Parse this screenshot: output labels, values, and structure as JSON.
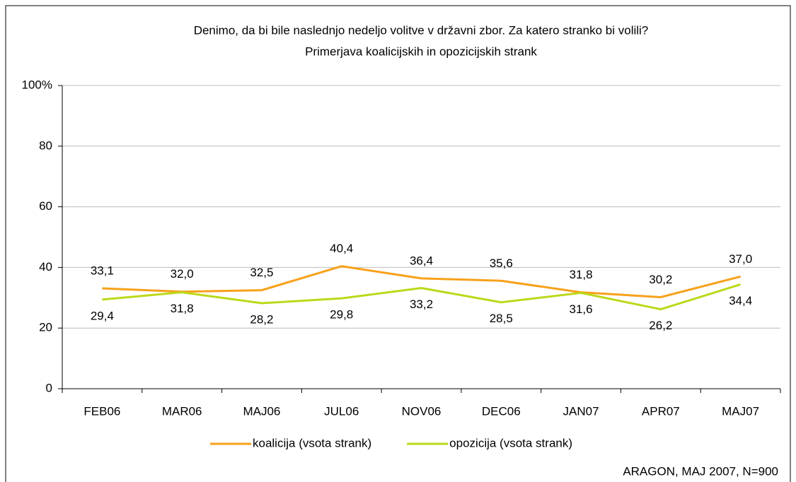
{
  "chart_data": {
    "type": "line",
    "title": "Denimo, da bi bile naslednjo nedeljo volitve v državni zbor. Za katero stranko bi volili?",
    "subtitle": "Primerjava koalicijskih in opozicijskih strank",
    "source": "ARAGON, MAJ 2007, N=900",
    "categories": [
      "FEB06",
      "MAR06",
      "MAJ06",
      "JUL06",
      "NOV06",
      "DEC06",
      "JAN07",
      "APR07",
      "MAJ07"
    ],
    "series": [
      {
        "name": "koalicija (vsota strank)",
        "color": "#f7a11a",
        "values": [
          33.1,
          32.0,
          32.5,
          40.4,
          36.4,
          35.6,
          31.8,
          30.2,
          37.0
        ],
        "value_labels": [
          "33,1",
          "32,0",
          "32,5",
          "40,4",
          "36,4",
          "35,6",
          "31,8",
          "30,2",
          "37,0"
        ]
      },
      {
        "name": "opozicija (vsota strank)",
        "color": "#bcd81a",
        "values": [
          29.4,
          31.8,
          28.2,
          29.8,
          33.2,
          28.5,
          31.6,
          26.2,
          34.4
        ],
        "value_labels": [
          "29,4",
          "31,8",
          "28,2",
          "29,8",
          "33,2",
          "28,5",
          "31,6",
          "26,2",
          "34,4"
        ]
      }
    ],
    "ylim": [
      0,
      100
    ],
    "yticks": [
      0,
      20,
      40,
      60,
      80,
      {
        "value": 100,
        "label": "100%"
      }
    ],
    "grid": true,
    "legend": "bottom"
  }
}
